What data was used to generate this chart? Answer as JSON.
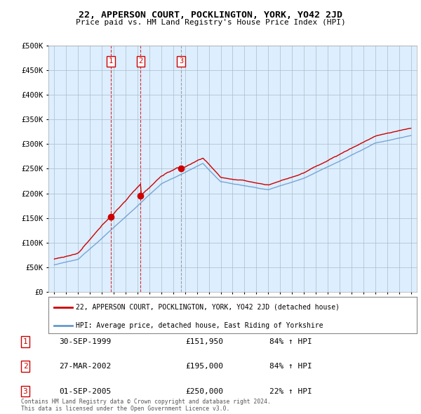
{
  "title": "22, APPERSON COURT, POCKLINGTON, YORK, YO42 2JD",
  "subtitle": "Price paid vs. HM Land Registry's House Price Index (HPI)",
  "legend_red": "22, APPERSON COURT, POCKLINGTON, YORK, YO42 2JD (detached house)",
  "legend_blue": "HPI: Average price, detached house, East Riding of Yorkshire",
  "footer": "Contains HM Land Registry data © Crown copyright and database right 2024.\nThis data is licensed under the Open Government Licence v3.0.",
  "sales": [
    {
      "num": 1,
      "date": "30-SEP-1999",
      "price": 151950,
      "pct": "84%",
      "dir": "↑",
      "label": "HPI",
      "x_year": 1999.75,
      "vline_color": "#cc0000",
      "vline_style": "--"
    },
    {
      "num": 2,
      "date": "27-MAR-2002",
      "price": 195000,
      "pct": "84%",
      "dir": "↑",
      "label": "HPI",
      "x_year": 2002.25,
      "vline_color": "#cc0000",
      "vline_style": "--"
    },
    {
      "num": 3,
      "date": "01-SEP-2005",
      "price": 250000,
      "pct": "22%",
      "dir": "↑",
      "label": "HPI",
      "x_year": 2005.67,
      "vline_color": "#888888",
      "vline_style": "--"
    }
  ],
  "ylim": [
    0,
    500000
  ],
  "yticks": [
    0,
    50000,
    100000,
    150000,
    200000,
    250000,
    300000,
    350000,
    400000,
    450000,
    500000
  ],
  "xlim_start": 1994.5,
  "xlim_end": 2025.5,
  "bg_color": "#ffffff",
  "plot_bg_color": "#ddeeff",
  "grid_color": "#aabbcc",
  "red_color": "#cc0000",
  "blue_color": "#6699cc"
}
